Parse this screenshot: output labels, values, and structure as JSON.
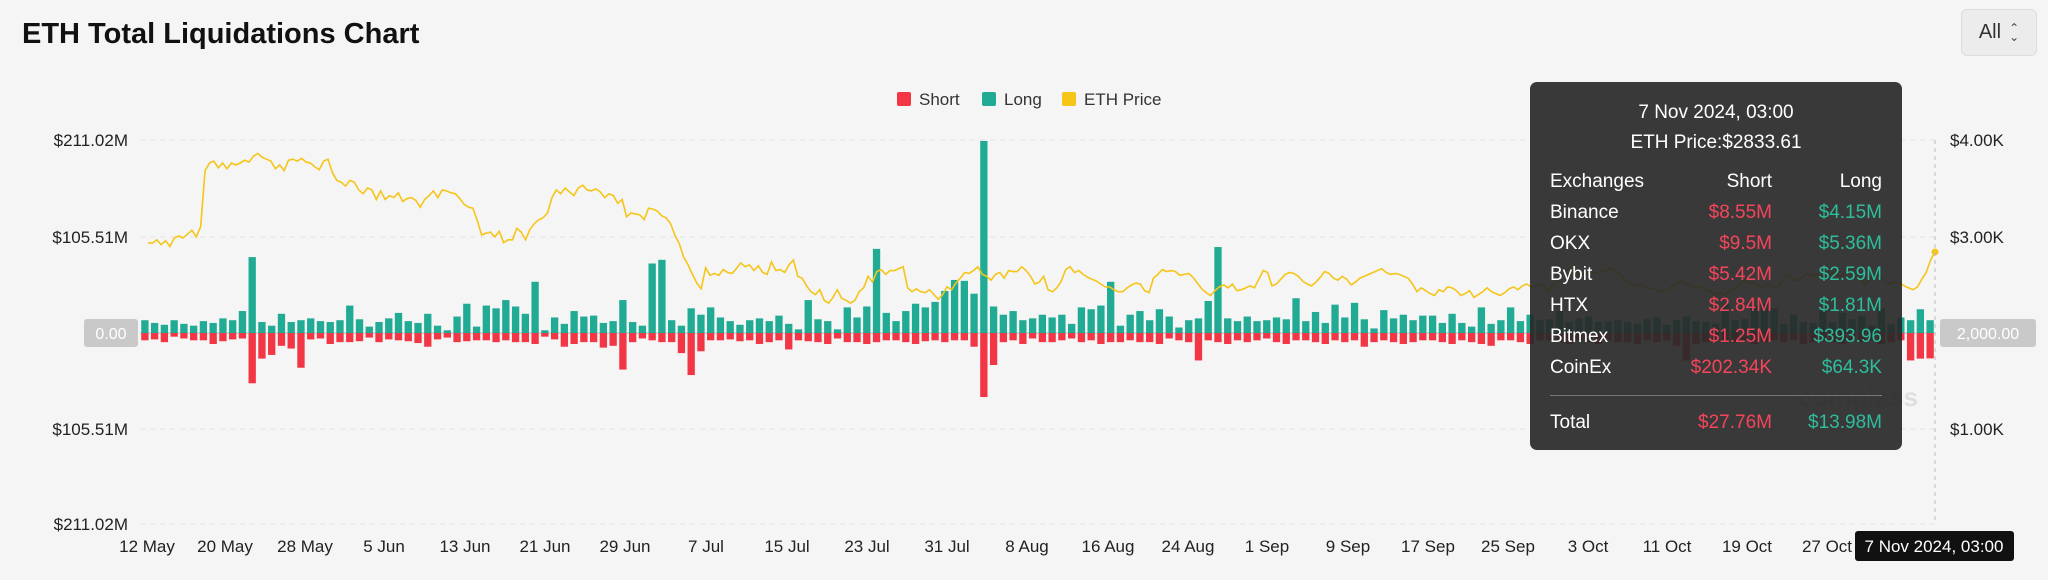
{
  "title": "ETH Total Liquidations Chart",
  "range_selector": {
    "value": "All"
  },
  "tooltip": {
    "date": "7 Nov 2024, 03:00",
    "eth_price": "ETH Price:$2833.61",
    "headers": {
      "exchange": "Exchanges",
      "short": "Short",
      "long": "Long"
    },
    "rows": [
      {
        "exchange": "Binance",
        "short": "$8.55M",
        "long": "$4.15M"
      },
      {
        "exchange": "OKX",
        "short": "$9.5M",
        "long": "$5.36M"
      },
      {
        "exchange": "Bybit",
        "short": "$5.42M",
        "long": "$2.59M"
      },
      {
        "exchange": "HTX",
        "short": "$2.84M",
        "long": "$1.81M"
      },
      {
        "exchange": "Bitmex",
        "short": "$1.25M",
        "long": "$393.96"
      },
      {
        "exchange": "CoinEx",
        "short": "$202.34K",
        "long": "$64.3K"
      }
    ],
    "total": {
      "label": "Total",
      "short": "$27.76M",
      "long": "$13.98M"
    }
  },
  "watermark": "coinglass",
  "colors": {
    "short": "#f23645",
    "long": "#22ab94",
    "price": "#f5c518",
    "zero_badge": "#c9c9c9"
  },
  "chart_data": {
    "type": "bar",
    "title": "ETH Total Liquidations Chart",
    "legend": [
      "Short",
      "Long",
      "ETH Price"
    ],
    "legend_position": "top-center",
    "x_start": "2024-05-11",
    "x_end": "2024-11-07",
    "x_ticks": [
      "12 May",
      "20 May",
      "28 May",
      "5 Jun",
      "13 Jun",
      "21 Jun",
      "29 Jun",
      "7 Jul",
      "15 Jul",
      "23 Jul",
      "31 Jul",
      "8 Aug",
      "16 Aug",
      "24 Aug",
      "1 Sep",
      "9 Sep",
      "17 Sep",
      "25 Sep",
      "3 Oct",
      "11 Oct",
      "19 Oct",
      "27 Oct"
    ],
    "x_highlight": "7 Nov 2024, 03:00",
    "y_left_ticks": [
      "$211.02M",
      "$105.51M",
      "0.00",
      "$105.51M",
      "$211.02M"
    ],
    "y_left_range_millions": [
      -211.02,
      211.02
    ],
    "y_right_ticks": [
      "$4.00K",
      "$3.00K",
      "2,000.00",
      "$1.00K"
    ],
    "y_right_range": [
      0,
      4000
    ],
    "series": [
      {
        "name": "Long",
        "unit": "USD millions",
        "values": [
          14,
          11,
          9,
          14,
          10,
          8,
          13,
          11,
          16,
          14,
          24,
          83,
          12,
          8,
          21,
          12,
          14,
          16,
          13,
          12,
          14,
          30,
          15,
          7,
          12,
          16,
          22,
          13,
          11,
          21,
          8,
          3,
          18,
          32,
          7,
          30,
          27,
          36,
          29,
          21,
          56,
          3,
          17,
          10,
          24,
          18,
          19,
          11,
          13,
          36,
          12,
          8,
          76,
          80,
          14,
          8,
          27,
          20,
          28,
          17,
          13,
          9,
          14,
          16,
          13,
          19,
          10,
          4,
          36,
          15,
          13,
          4,
          28,
          17,
          29,
          92,
          22,
          13,
          24,
          32,
          28,
          34,
          46,
          58,
          57,
          43,
          210,
          29,
          20,
          24,
          14,
          16,
          20,
          17,
          20,
          10,
          28,
          26,
          30,
          56,
          8,
          20,
          24,
          14,
          26,
          18,
          6,
          14,
          16,
          35,
          94,
          16,
          13,
          18,
          13,
          14,
          17,
          15,
          38,
          13,
          23,
          11,
          31,
          17,
          33,
          15,
          5,
          25,
          16,
          20,
          14,
          19,
          19,
          11,
          21,
          11,
          7,
          28,
          10,
          14,
          28,
          13,
          20,
          14,
          15,
          24,
          12,
          16,
          18,
          12,
          13,
          14,
          12,
          10,
          15,
          17,
          9,
          14,
          18,
          13,
          12,
          10,
          31,
          14,
          15,
          30,
          32,
          27,
          10,
          20,
          12,
          11,
          25,
          12,
          22,
          15,
          19,
          8,
          27,
          10,
          17,
          14,
          26,
          14
        ]
      },
      {
        "name": "Short",
        "unit": "USD millions",
        "values": [
          8,
          7,
          10,
          4,
          6,
          8,
          8,
          12,
          9,
          7,
          6,
          55,
          28,
          24,
          14,
          17,
          38,
          7,
          6,
          12,
          10,
          10,
          9,
          5,
          10,
          7,
          8,
          9,
          11,
          15,
          7,
          5,
          10,
          9,
          8,
          8,
          10,
          8,
          10,
          10,
          12,
          4,
          7,
          15,
          12,
          10,
          10,
          16,
          14,
          40,
          10,
          6,
          8,
          10,
          10,
          22,
          46,
          20,
          8,
          8,
          7,
          9,
          8,
          12,
          10,
          8,
          18,
          8,
          9,
          10,
          12,
          6,
          10,
          10,
          12,
          10,
          8,
          8,
          10,
          12,
          9,
          8,
          10,
          8,
          8,
          15,
          70,
          35,
          10,
          8,
          12,
          6,
          10,
          10,
          8,
          6,
          10,
          8,
          12,
          10,
          10,
          8,
          10,
          10,
          12,
          6,
          8,
          10,
          30,
          8,
          10,
          12,
          8,
          10,
          8,
          6,
          10,
          12,
          8,
          8,
          10,
          12,
          8,
          10,
          8,
          15,
          10,
          8,
          10,
          12,
          10,
          8,
          8,
          10,
          12,
          8,
          10,
          12,
          14,
          8,
          8,
          10,
          12,
          8,
          8,
          10,
          12,
          8,
          10,
          12,
          8,
          10,
          10,
          12,
          8,
          10,
          8,
          14,
          30,
          12,
          10,
          8,
          10,
          10,
          8,
          12,
          10,
          8,
          10,
          8,
          12,
          10,
          8,
          10,
          12,
          8,
          10,
          8,
          12,
          10,
          8,
          30,
          28,
          27.76
        ]
      },
      {
        "name": "ETH Price",
        "unit": "USD",
        "values": [
          2930,
          2925,
          2960,
          2910,
          2950,
          2890,
          2980,
          3000,
          2980,
          3020,
          3060,
          2990,
          3100,
          3680,
          3760,
          3780,
          3710,
          3760,
          3700,
          3760,
          3740,
          3760,
          3790,
          3770,
          3830,
          3860,
          3820,
          3800,
          3780,
          3700,
          3740,
          3680,
          3790,
          3800,
          3780,
          3810,
          3770,
          3760,
          3720,
          3690,
          3780,
          3800,
          3660,
          3580,
          3560,
          3520,
          3580,
          3560,
          3480,
          3440,
          3500,
          3480,
          3380,
          3470,
          3380,
          3420,
          3400,
          3450,
          3360,
          3390,
          3400,
          3370,
          3300,
          3380,
          3420,
          3470,
          3400,
          3480,
          3470,
          3450,
          3440,
          3390,
          3330,
          3300,
          3290,
          3160,
          3010,
          3030,
          3040,
          2990,
          3050,
          2930,
          2960,
          2960,
          3080,
          3040,
          2960,
          3070,
          3130,
          3170,
          3190,
          3240,
          3400,
          3480,
          3440,
          3500,
          3460,
          3420,
          3500,
          3530,
          3480,
          3470,
          3490,
          3460,
          3400,
          3440,
          3420,
          3340,
          3380,
          3200,
          3240,
          3230,
          3220,
          3170,
          3290,
          3280,
          3260,
          3210,
          3190,
          3130,
          3010,
          2920,
          2780,
          2700,
          2600,
          2510,
          2450,
          2670,
          2590,
          2610,
          2590,
          2650,
          2620,
          2610,
          2660,
          2720,
          2680,
          2700,
          2640,
          2690,
          2620,
          2600,
          2730,
          2640,
          2650,
          2620,
          2700,
          2750,
          2580,
          2560,
          2480,
          2420,
          2390,
          2440,
          2330,
          2300,
          2360,
          2440,
          2350,
          2330,
          2300,
          2330,
          2420,
          2460,
          2580,
          2520,
          2630,
          2650,
          2600,
          2640,
          2640,
          2660,
          2680,
          2460,
          2420,
          2450,
          2420,
          2410,
          2440,
          2390,
          2340,
          2390,
          2470,
          2440,
          2510,
          2560,
          2620,
          2610,
          2640,
          2680,
          2600,
          2580,
          2540,
          2600,
          2620,
          2560,
          2640,
          2630,
          2630,
          2680,
          2640,
          2580,
          2500,
          2520,
          2580,
          2440,
          2420,
          2460,
          2530,
          2650,
          2680,
          2620,
          2640,
          2600,
          2570,
          2550,
          2530,
          2500,
          2470,
          2470,
          2440,
          2420,
          2420,
          2460,
          2490,
          2510,
          2500,
          2430,
          2410,
          2560,
          2600,
          2650,
          2630,
          2640,
          2630,
          2590,
          2600,
          2610,
          2570,
          2510,
          2450,
          2410,
          2380,
          2430,
          2470,
          2490,
          2460,
          2500,
          2430,
          2440,
          2460,
          2480,
          2460,
          2550,
          2640,
          2620,
          2480,
          2500,
          2550,
          2600,
          2620,
          2610,
          2580,
          2530,
          2500,
          2480,
          2520,
          2570,
          2630,
          2610,
          2560,
          2540,
          2580,
          2550,
          2490,
          2520,
          2560,
          2580,
          2600,
          2620,
          2640,
          2660,
          2620,
          2600,
          2610,
          2600,
          2580,
          2560,
          2500,
          2420,
          2460,
          2430,
          2400,
          2380,
          2440,
          2420,
          2470,
          2460,
          2430,
          2380,
          2400,
          2430,
          2360,
          2390,
          2420,
          2460,
          2420,
          2400,
          2380,
          2410,
          2450,
          2470,
          2440,
          2480,
          2500,
          2470,
          2490,
          2500,
          2470,
          2420,
          2490,
          2520,
          2600,
          2650,
          2660,
          2640,
          2600,
          2610,
          2630,
          2620,
          2610,
          2650,
          2620,
          2670,
          2640,
          2610,
          2560,
          2520,
          2500,
          2480,
          2500,
          2460,
          2450,
          2460,
          2430,
          2420,
          2440,
          2470,
          2510,
          2530,
          2500,
          2500,
          2460,
          2470,
          2460,
          2430,
          2420,
          2390,
          2410,
          2380,
          2420,
          2450,
          2470,
          2520,
          2530,
          2510,
          2510,
          2470,
          2460,
          2500,
          2480,
          2450,
          2510,
          2600,
          2580,
          2540,
          2540,
          2580,
          2610,
          2580,
          2600,
          2580,
          2560,
          2610,
          2620,
          2580,
          2590,
          2640,
          2610,
          2560,
          2570,
          2490,
          2530,
          2600,
          2590,
          2550,
          2510,
          2500,
          2530,
          2510,
          2480,
          2460,
          2440,
          2470,
          2550,
          2620,
          2750,
          2833.61
        ]
      }
    ]
  }
}
